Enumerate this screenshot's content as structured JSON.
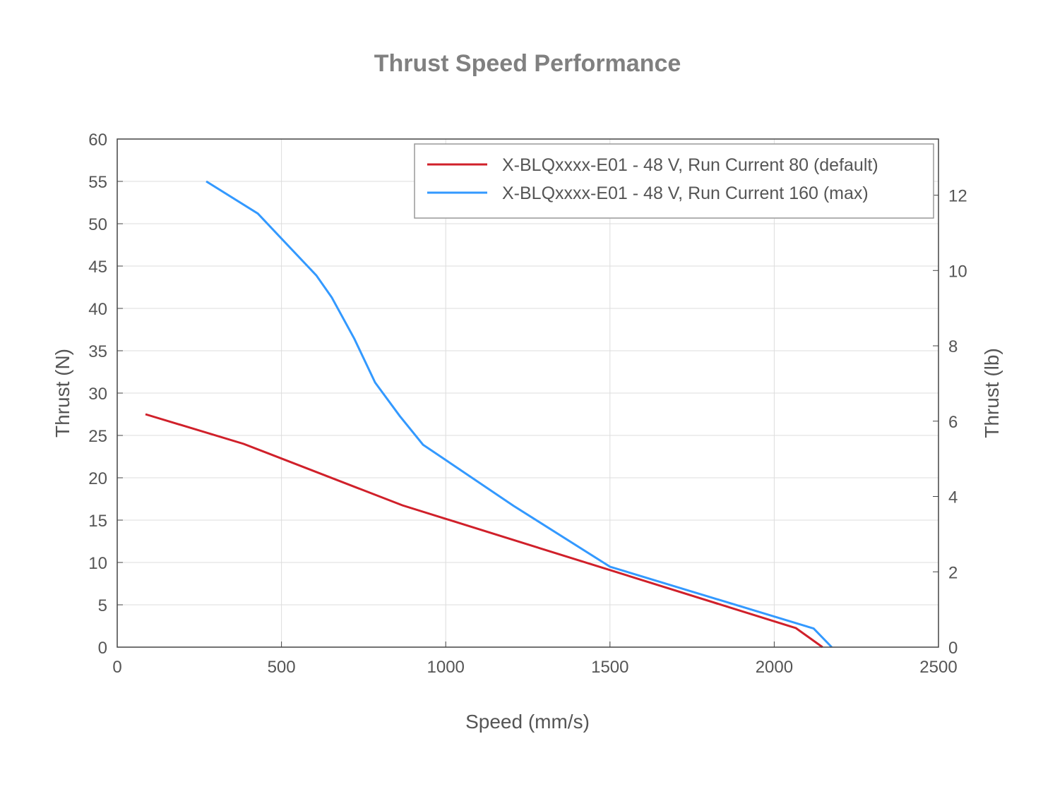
{
  "chart_data": {
    "type": "line",
    "title": "Thrust Speed Performance",
    "xlabel": "Speed (mm/s)",
    "ylabel": "Thrust (N)",
    "y2label": "Thrust (lb)",
    "xlim": [
      0,
      2500
    ],
    "ylim": [
      0,
      60
    ],
    "y2lim": [
      0,
      13.49
    ],
    "xticks": [
      0,
      500,
      1000,
      1500,
      2000,
      2500
    ],
    "yticks": [
      0,
      5,
      10,
      15,
      20,
      25,
      30,
      35,
      40,
      45,
      50,
      55,
      60
    ],
    "y2ticks": [
      0,
      2,
      4,
      6,
      8,
      10,
      12
    ],
    "grid": true,
    "legend_position": "top-right",
    "series": [
      {
        "name": "X-BLQxxxx-E01 - 48 V, Run Current 80 (default)",
        "color": "#d0202a",
        "x": [
          86,
          385,
          868,
          2066,
          2147
        ],
        "y": [
          27.5,
          24.0,
          16.75,
          2.25,
          0
        ]
      },
      {
        "name": "X-BLQxxxx-E01 - 48 V, Run Current 160 (max)",
        "color": "#3399ff",
        "x": [
          271,
          428,
          606,
          653,
          722,
          785,
          860,
          931,
          1206,
          1500,
          2120,
          2175
        ],
        "y": [
          55,
          51.2,
          43.9,
          41.3,
          36.4,
          31.25,
          27.3,
          23.9,
          16.7,
          9.5,
          2.2,
          0
        ]
      }
    ]
  }
}
